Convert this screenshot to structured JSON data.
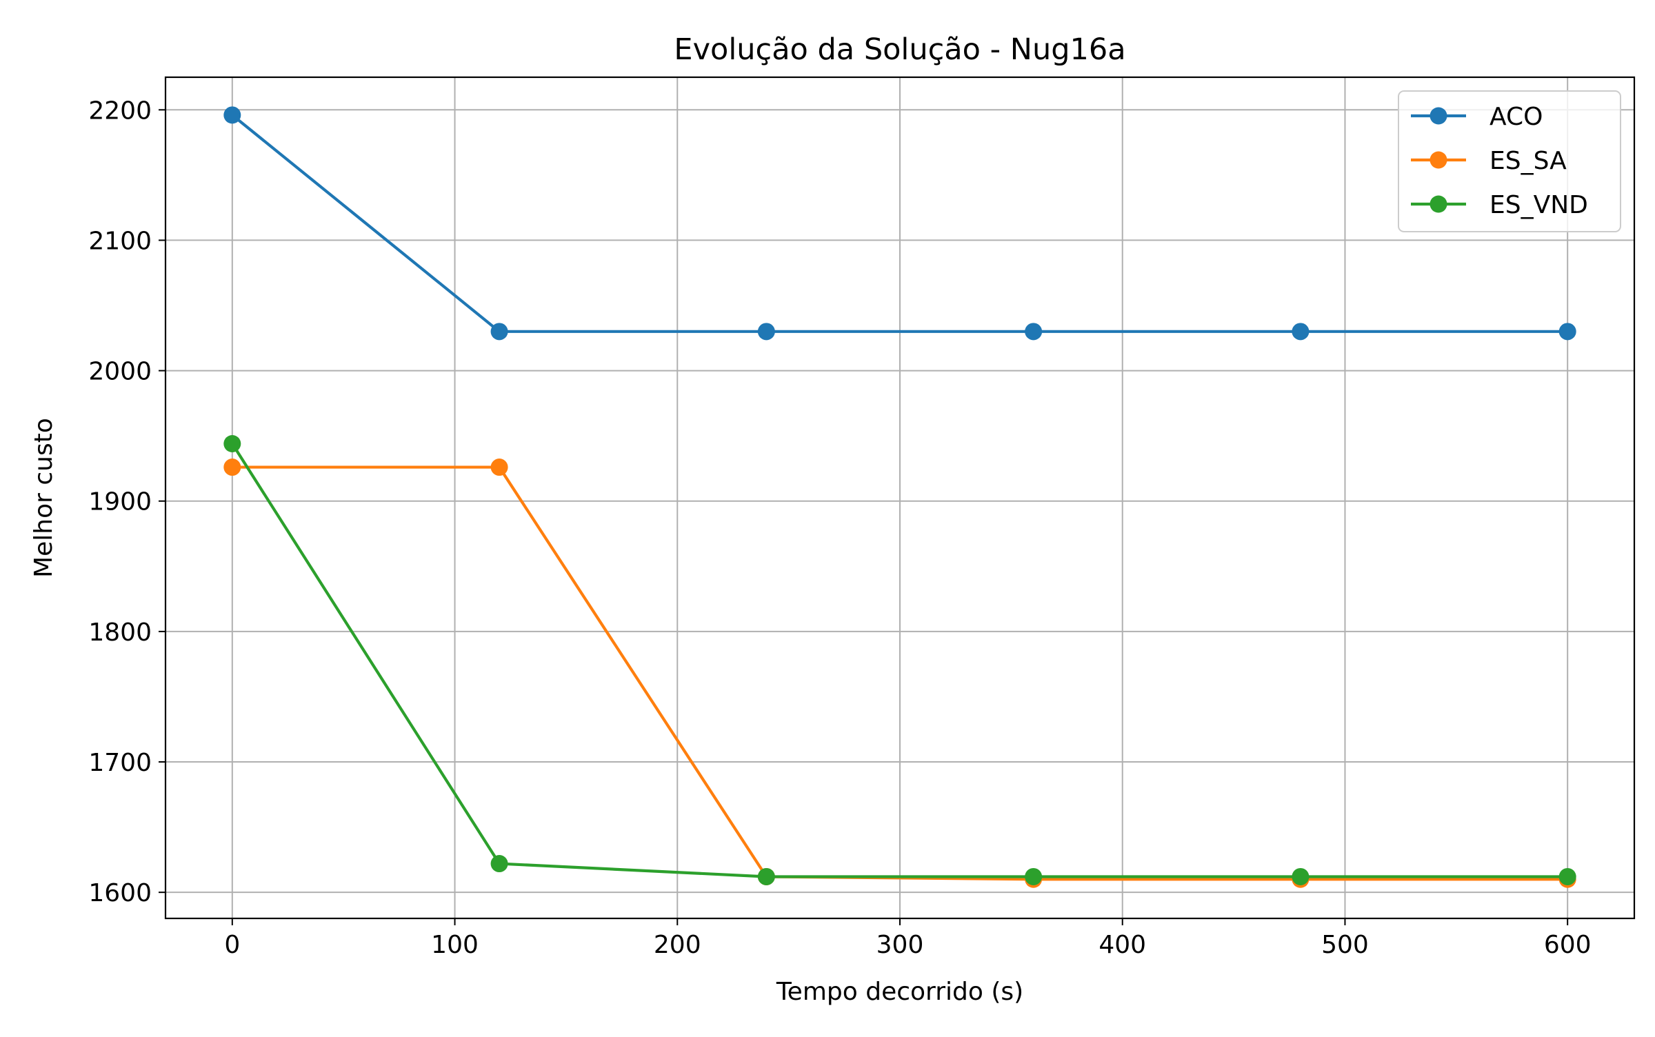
{
  "chart_data": {
    "type": "line",
    "title": "Evolução da Solução - Nug16a",
    "xlabel": "Tempo decorrido (s)",
    "ylabel": "Melhor custo",
    "xlim": [
      -30,
      630
    ],
    "ylim": [
      1580,
      2225
    ],
    "xticks": [
      0,
      100,
      200,
      300,
      400,
      500,
      600
    ],
    "yticks": [
      1600,
      1700,
      1800,
      1900,
      2000,
      2100,
      2200
    ],
    "grid": true,
    "legend_position": "top-right",
    "x": [
      0,
      120,
      240,
      360,
      480,
      600
    ],
    "series": [
      {
        "name": "ACO",
        "color": "#1f77b4",
        "values": [
          2196,
          2030,
          2030,
          2030,
          2030,
          2030
        ]
      },
      {
        "name": "ES_SA",
        "color": "#ff7f0e",
        "values": [
          1926,
          1926,
          1612,
          1610,
          1610,
          1610
        ]
      },
      {
        "name": "ES_VND",
        "color": "#2ca02c",
        "values": [
          1944,
          1622,
          1612,
          1612,
          1612,
          1612
        ]
      }
    ]
  }
}
